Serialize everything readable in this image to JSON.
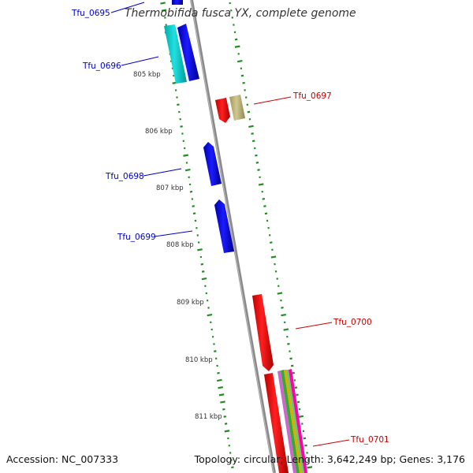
{
  "title": "Thermobifida fusca YX, complete genome",
  "footer": {
    "accession": "Accession: NC_007333",
    "summary": "Topology: circular; Length: 3,642,249 bp; Genes: 3,176"
  },
  "colors": {
    "reverse_strand": "#0000ee",
    "forward_strand": "#ee0000",
    "cyan_feature": "#00cccc",
    "khaki_feature": "#b8b070",
    "backbone": "#888888",
    "gc_ticks": "#228B22"
  },
  "scale": {
    "unit": "kbp",
    "ticks": [
      "805 kbp",
      "806 kbp",
      "807 kbp",
      "808 kbp",
      "809 kbp",
      "810 kbp",
      "811 kbp"
    ]
  },
  "gene_labels": [
    {
      "id": "tfu0695",
      "text": "Tfu_0695",
      "strand": "reverse"
    },
    {
      "id": "tfu0696",
      "text": "Tfu_0696",
      "strand": "reverse"
    },
    {
      "id": "tfu0697",
      "text": "Tfu_0697",
      "strand": "forward"
    },
    {
      "id": "tfu0698",
      "text": "Tfu_0698",
      "strand": "reverse"
    },
    {
      "id": "tfu0699",
      "text": "Tfu_0699",
      "strand": "reverse"
    },
    {
      "id": "tfu0700",
      "text": "Tfu_0700",
      "strand": "forward"
    },
    {
      "id": "tfu0701",
      "text": "Tfu_0701",
      "strand": "forward"
    }
  ]
}
